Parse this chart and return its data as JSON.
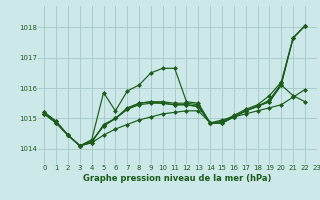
{
  "title": "Graphe pression niveau de la mer (hPa)",
  "background_color": "#cce8e8",
  "grid_color": "#aacccc",
  "line_color": "#1a5c1a",
  "xlim": [
    -0.5,
    23
  ],
  "ylim": [
    1013.5,
    1018.7
  ],
  "yticks": [
    1014,
    1015,
    1016,
    1017,
    1018
  ],
  "xticks": [
    0,
    1,
    2,
    3,
    4,
    5,
    6,
    7,
    8,
    9,
    10,
    11,
    12,
    13,
    14,
    15,
    16,
    17,
    18,
    19,
    20,
    21,
    22,
    23
  ],
  "line1_x": [
    0,
    1,
    2,
    3,
    4,
    5,
    6,
    7,
    8,
    9,
    10,
    11,
    12,
    13,
    14,
    15,
    16,
    17,
    18,
    19,
    20,
    21,
    22
  ],
  "line1_y": [
    1015.2,
    1014.9,
    1014.45,
    1014.1,
    1014.2,
    1014.45,
    1014.65,
    1014.8,
    1014.95,
    1015.05,
    1015.15,
    1015.2,
    1015.25,
    1015.25,
    1014.85,
    1014.95,
    1015.05,
    1015.15,
    1015.25,
    1015.35,
    1015.45,
    1015.7,
    1015.95
  ],
  "line2_x": [
    0,
    1,
    2,
    3,
    4,
    5,
    6,
    7,
    8,
    9,
    10,
    11,
    12,
    13,
    14,
    15,
    16,
    17,
    18,
    19,
    20,
    21,
    22
  ],
  "line2_y": [
    1015.2,
    1014.9,
    1014.45,
    1014.1,
    1014.3,
    1015.85,
    1015.25,
    1015.9,
    1016.1,
    1016.5,
    1016.65,
    1016.65,
    1015.55,
    1015.5,
    1014.85,
    1014.9,
    1015.1,
    1015.3,
    1015.45,
    1015.75,
    1016.2,
    1017.65,
    1018.05
  ],
  "line3_x": [
    0,
    1,
    2,
    3,
    4,
    5,
    6,
    7,
    8,
    9,
    10,
    11,
    12,
    13,
    14,
    15,
    16,
    17,
    18,
    19,
    20,
    21,
    22
  ],
  "line3_y": [
    1015.15,
    1014.85,
    1014.45,
    1014.1,
    1014.2,
    1014.8,
    1015.0,
    1015.35,
    1015.5,
    1015.55,
    1015.5,
    1015.45,
    1015.45,
    1015.4,
    1014.85,
    1014.85,
    1015.05,
    1015.25,
    1015.4,
    1015.55,
    1016.1,
    1015.75,
    1015.55
  ],
  "line4_x": [
    0,
    1,
    2,
    3,
    4,
    5,
    6,
    7,
    8,
    9,
    10,
    11,
    12,
    13,
    14,
    15,
    16,
    17,
    18,
    19,
    20,
    21,
    22
  ],
  "line4_y": [
    1015.15,
    1014.85,
    1014.45,
    1014.1,
    1014.25,
    1014.75,
    1015.0,
    1015.3,
    1015.45,
    1015.5,
    1015.5,
    1015.45,
    1015.45,
    1015.38,
    1014.85,
    1014.85,
    1015.05,
    1015.25,
    1015.4,
    1015.55,
    1016.1,
    1017.65,
    1018.05
  ],
  "line5_x": [
    0,
    1,
    2,
    3,
    4,
    5,
    6,
    7,
    8,
    9,
    10,
    11,
    12,
    13,
    14,
    15,
    16,
    17,
    18,
    19,
    20,
    21,
    22
  ],
  "line5_y": [
    1015.15,
    1014.85,
    1014.45,
    1014.1,
    1014.25,
    1014.75,
    1015.0,
    1015.3,
    1015.5,
    1015.55,
    1015.55,
    1015.5,
    1015.5,
    1015.45,
    1014.85,
    1014.85,
    1015.05,
    1015.25,
    1015.4,
    1015.6,
    1016.15,
    1017.65,
    1018.05
  ]
}
